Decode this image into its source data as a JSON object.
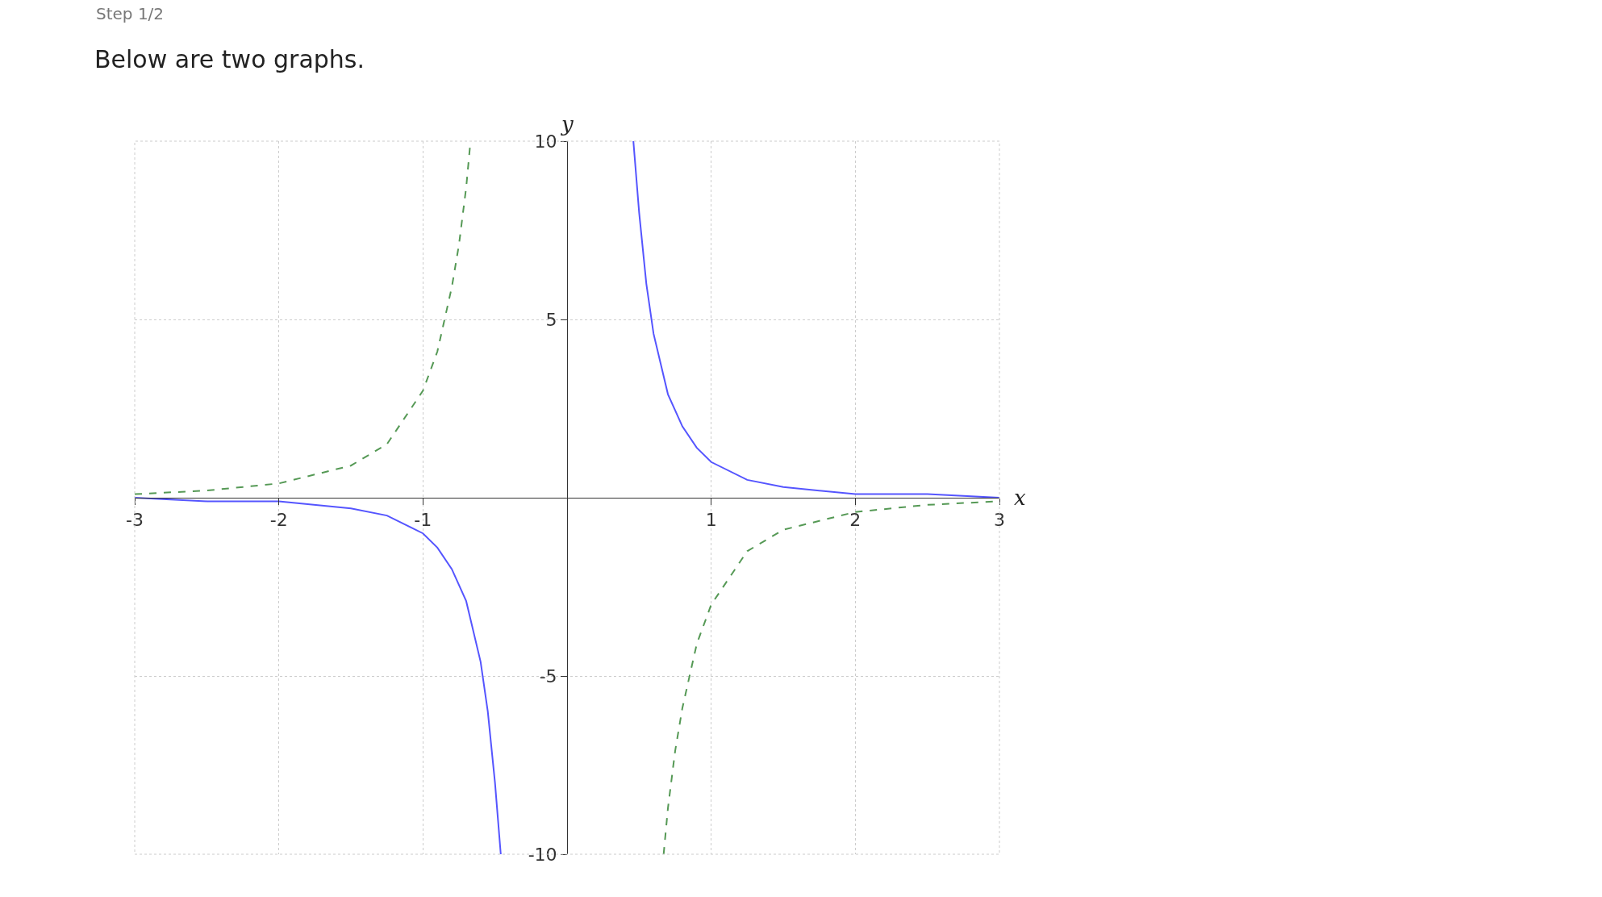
{
  "chart_data": {
    "type": "line",
    "title": "Below are two graphs.",
    "subtitle": "Step 1/2",
    "xlabel": "x",
    "ylabel": "y",
    "xlim": [
      -3,
      3
    ],
    "ylim": [
      -10,
      10
    ],
    "xticks": [
      -3,
      -2,
      -1,
      1,
      2,
      3
    ],
    "yticks": [
      -10,
      -5,
      5,
      10
    ],
    "grid": true,
    "legend": false,
    "marker": "none",
    "series": [
      {
        "color": "#5555ff",
        "line_style": "solid",
        "x": [
          -3,
          -2.5,
          -2,
          -1.5,
          -1.25,
          -1,
          -0.9,
          -0.8,
          -0.7,
          -0.6,
          -0.55,
          -0.5,
          -0.46,
          0,
          0.46,
          0.5,
          0.55,
          0.6,
          0.7,
          0.8,
          0.9,
          1,
          1.25,
          1.5,
          2,
          2.5,
          3
        ],
        "values": [
          0,
          -0.1,
          -0.1,
          -0.3,
          -0.5,
          -1,
          -1.4,
          -2,
          -2.9,
          -4.6,
          -6,
          -8,
          -10,
          null,
          10,
          8,
          6,
          4.6,
          2.9,
          2,
          1.4,
          1,
          0.5,
          0.3,
          0.1,
          0.1,
          0
        ]
      },
      {
        "color": "#559955",
        "line_style": "dashed",
        "x": [
          -3,
          -2.5,
          -2,
          -1.5,
          -1.25,
          -1,
          -0.9,
          -0.8,
          -0.75,
          -0.7,
          -0.67,
          0,
          0.67,
          0.7,
          0.75,
          0.8,
          0.9,
          1,
          1.25,
          1.5,
          2,
          2.5,
          3
        ],
        "values": [
          0.1,
          0.2,
          0.4,
          0.9,
          1.5,
          3,
          4.1,
          5.9,
          7.1,
          8.7,
          10,
          null,
          -10,
          -8.7,
          -7.1,
          -5.9,
          -4.1,
          -3,
          -1.5,
          -0.9,
          -0.4,
          -0.2,
          -0.1
        ]
      }
    ]
  }
}
